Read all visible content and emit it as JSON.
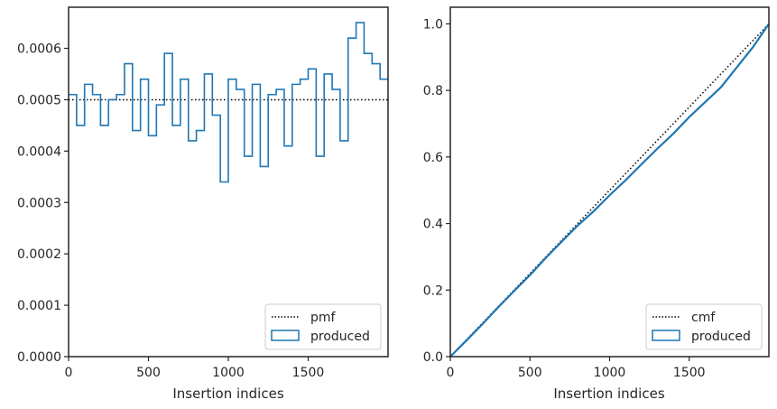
{
  "chart_data": [
    {
      "type": "line",
      "xlabel": "Insertion indices",
      "ylabel": "",
      "xlim": [
        0,
        2000
      ],
      "ylim": [
        0,
        0.00068
      ],
      "xticks": [
        0,
        500,
        1000,
        1500
      ],
      "xtick_labels": [
        "0",
        "500",
        "1000",
        "1500"
      ],
      "yticks": [
        0,
        0.0001,
        0.0002,
        0.0003,
        0.0004,
        0.0005,
        0.0006
      ],
      "ytick_labels": [
        "0.0000",
        "0.0001",
        "0.0002",
        "0.0003",
        "0.0004",
        "0.0005",
        "0.0006"
      ],
      "grid": false,
      "legend": {
        "position": "lower right",
        "entries": [
          "pmf",
          "produced"
        ]
      },
      "series": [
        {
          "name": "pmf",
          "style": "dotted",
          "color": "#000000",
          "x": [
            0,
            2000
          ],
          "y": [
            0.0005,
            0.0005
          ]
        },
        {
          "name": "produced",
          "style": "step-histogram",
          "color": "#1f77b4",
          "bin_edges": [
            0,
            50,
            100,
            150,
            200,
            250,
            300,
            350,
            400,
            450,
            500,
            550,
            600,
            650,
            700,
            750,
            800,
            850,
            900,
            950,
            1000,
            1050,
            1100,
            1150,
            1200,
            1250,
            1300,
            1350,
            1400,
            1450,
            1500,
            1550,
            1600,
            1650,
            1700,
            1750,
            1800,
            1850,
            1900,
            1950,
            2000
          ],
          "values": [
            0.00051,
            0.00045,
            0.00053,
            0.00051,
            0.00045,
            0.0005,
            0.00051,
            0.00057,
            0.00044,
            0.00054,
            0.00043,
            0.00049,
            0.00059,
            0.00045,
            0.00054,
            0.00042,
            0.00044,
            0.00055,
            0.00047,
            0.00034,
            0.00054,
            0.00052,
            0.00039,
            0.00053,
            0.00037,
            0.00051,
            0.00052,
            0.00041,
            0.00053,
            0.00054,
            0.00056,
            0.00039,
            0.00055,
            0.00052,
            0.00042,
            0.00062,
            0.00065,
            0.00059,
            0.00057,
            0.00054
          ]
        }
      ]
    },
    {
      "type": "line",
      "xlabel": "Insertion indices",
      "ylabel": "",
      "xlim": [
        0,
        2000
      ],
      "ylim": [
        0,
        1.05
      ],
      "xticks": [
        0,
        500,
        1000,
        1500
      ],
      "xtick_labels": [
        "0",
        "500",
        "1000",
        "1500"
      ],
      "yticks": [
        0,
        0.2,
        0.4,
        0.6,
        0.8,
        1.0
      ],
      "ytick_labels": [
        "0.0",
        "0.2",
        "0.4",
        "0.6",
        "0.8",
        "1.0"
      ],
      "grid": false,
      "legend": {
        "position": "lower right",
        "entries": [
          "cmf",
          "produced"
        ]
      },
      "series": [
        {
          "name": "cmf",
          "style": "dotted",
          "color": "#000000",
          "x": [
            0,
            2000
          ],
          "y": [
            0,
            1
          ]
        },
        {
          "name": "produced",
          "style": "solid",
          "color": "#1f77b4",
          "x": [
            0,
            100,
            200,
            300,
            400,
            500,
            600,
            700,
            800,
            900,
            1000,
            1100,
            1200,
            1300,
            1400,
            1500,
            1600,
            1700,
            1800,
            1900,
            2000
          ],
          "y": [
            0,
            0.048,
            0.097,
            0.148,
            0.197,
            0.245,
            0.297,
            0.346,
            0.394,
            0.437,
            0.485,
            0.53,
            0.578,
            0.625,
            0.67,
            0.72,
            0.765,
            0.81,
            0.87,
            0.93,
            1.0
          ]
        }
      ]
    }
  ]
}
